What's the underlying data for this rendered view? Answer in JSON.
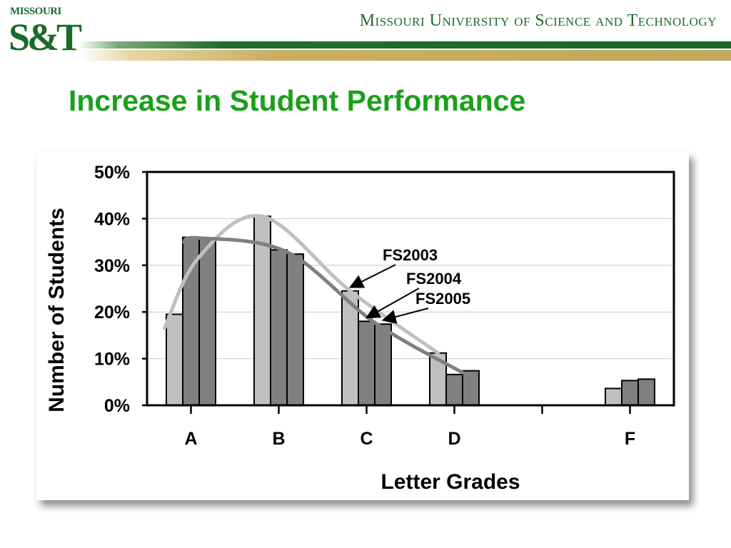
{
  "header": {
    "logo_small": "MISSOURI",
    "logo_big": "S&T",
    "university_name": "Missouri University of Science and Technology",
    "colors": {
      "green": "#1a6628",
      "gold": "#c2a85e",
      "title_green": "#1aa01a"
    }
  },
  "slide": {
    "title": "Increase in Student Performance"
  },
  "chart_data": {
    "type": "bar",
    "title": "",
    "xlabel": "Letter Grades",
    "ylabel": "Number of Students",
    "ylim": [
      0,
      50
    ],
    "yticks": [
      "0%",
      "10%",
      "20%",
      "30%",
      "40%",
      "50%"
    ],
    "categories": [
      "A",
      "B",
      "C",
      "D",
      "",
      "F"
    ],
    "grid": true,
    "series": [
      {
        "name": "FS2003",
        "color": "#c0c0c0",
        "values": [
          19.5,
          40.5,
          24.5,
          11.2,
          0,
          3.6
        ]
      },
      {
        "name": "FS2004",
        "color": "#808080",
        "values": [
          36.0,
          33.3,
          18.0,
          6.6,
          0,
          5.3
        ]
      },
      {
        "name": "FS2005",
        "color": "#808080",
        "values": [
          35.7,
          32.4,
          17.4,
          7.4,
          0,
          5.6
        ]
      }
    ],
    "trend_lines": [
      {
        "series": "FS2003",
        "color": "#c0c0c0"
      },
      {
        "series": "FS2004/FS2005",
        "color": "#808080"
      }
    ],
    "annotations": [
      "FS2003",
      "FS2004",
      "FS2005"
    ]
  }
}
